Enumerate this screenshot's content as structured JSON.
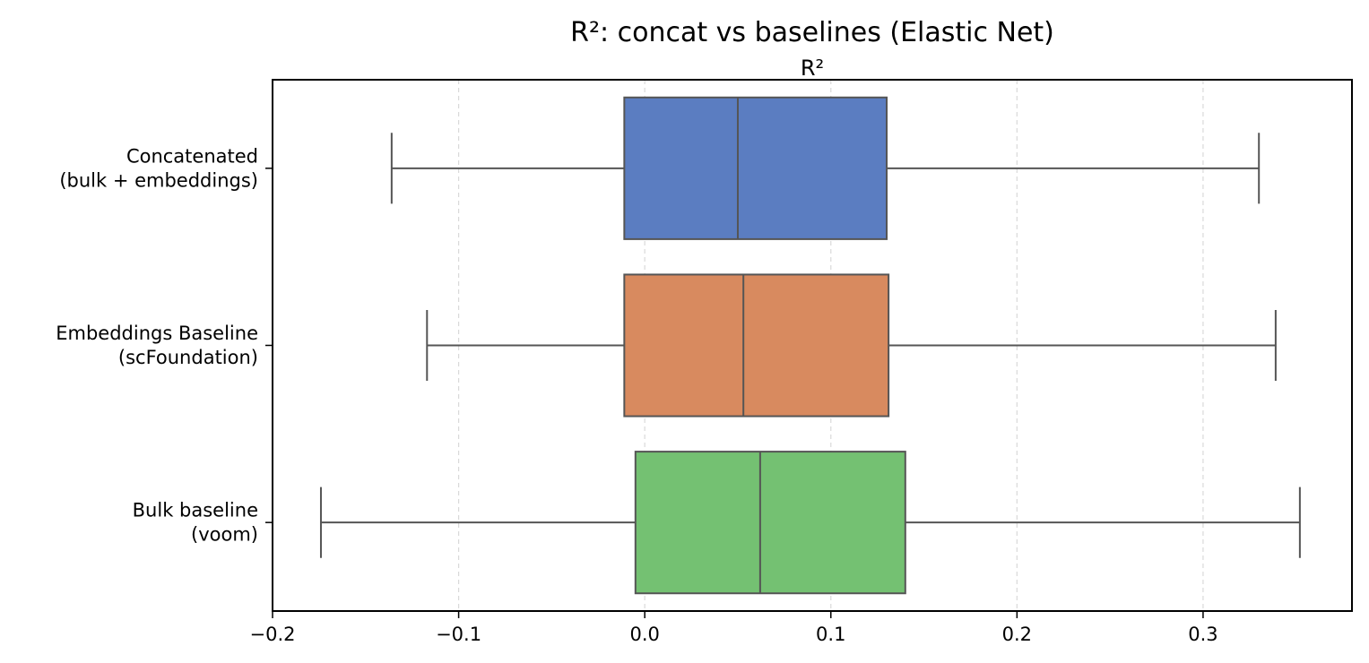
{
  "chart_data": {
    "type": "box",
    "orientation": "horizontal",
    "title": "R²: concat vs baselines (Elastic Net)",
    "subtitle": "R²",
    "xlim": [
      -0.2,
      0.38
    ],
    "xticks": [
      -0.2,
      -0.1,
      0.0,
      0.1,
      0.2,
      0.3
    ],
    "xtick_labels": [
      "−0.2",
      "−0.1",
      "0.0",
      "0.1",
      "0.2",
      "0.3"
    ],
    "grid": "vertical dashed",
    "series": [
      {
        "label_lines": [
          "Concatenated",
          "(bulk + embeddings)"
        ],
        "color": "#5b7dc1",
        "whisker_low": -0.136,
        "q1": -0.011,
        "median": 0.05,
        "q3": 0.13,
        "whisker_high": 0.33
      },
      {
        "label_lines": [
          "Embeddings Baseline",
          "(scFoundation)"
        ],
        "color": "#d88a5f",
        "whisker_low": -0.117,
        "q1": -0.011,
        "median": 0.053,
        "q3": 0.131,
        "whisker_high": 0.339
      },
      {
        "label_lines": [
          "Bulk baseline",
          "(voom)"
        ],
        "color": "#74c172",
        "whisker_low": -0.174,
        "q1": -0.005,
        "median": 0.062,
        "q3": 0.14,
        "whisker_high": 0.352
      }
    ]
  }
}
